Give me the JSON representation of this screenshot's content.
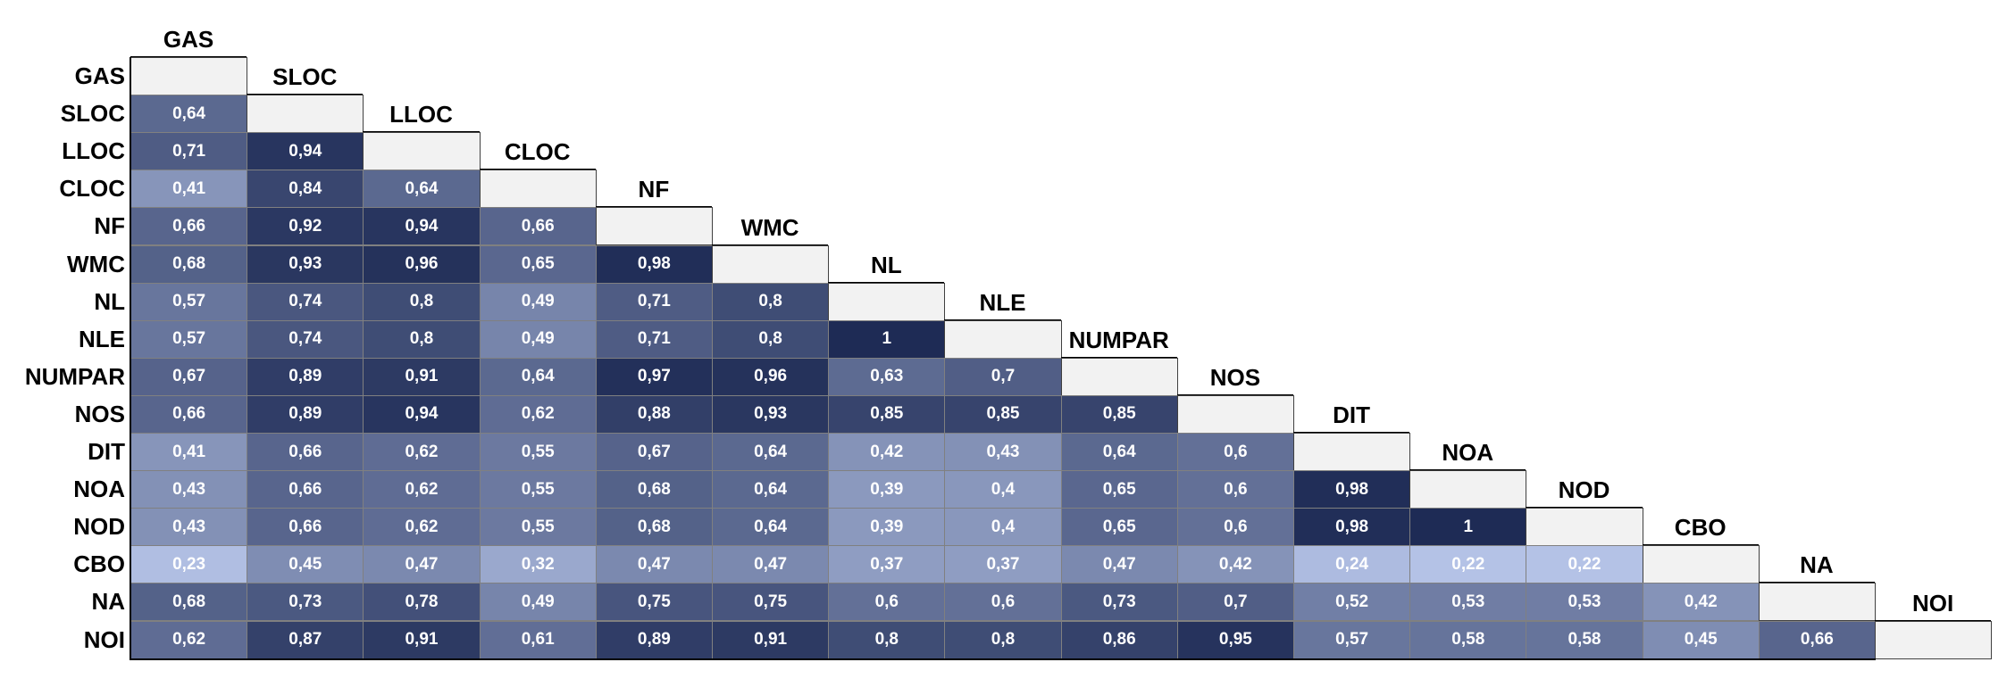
{
  "chart_data": {
    "type": "heatmap",
    "variables": [
      "GAS",
      "SLOC",
      "LLOC",
      "CLOC",
      "NF",
      "WMC",
      "NL",
      "NLE",
      "NUMPAR",
      "NOS",
      "DIT",
      "NOA",
      "NOD",
      "CBO",
      "NA",
      "NOI"
    ],
    "values": [
      [],
      [
        "0,64"
      ],
      [
        "0,71",
        "0,94"
      ],
      [
        "0,41",
        "0,84",
        "0,64"
      ],
      [
        "0,66",
        "0,92",
        "0,94",
        "0,66"
      ],
      [
        "0,68",
        "0,93",
        "0,96",
        "0,65",
        "0,98"
      ],
      [
        "0,57",
        "0,74",
        "0,8",
        "0,49",
        "0,71",
        "0,8"
      ],
      [
        "0,57",
        "0,74",
        "0,8",
        "0,49",
        "0,71",
        "0,8",
        "1"
      ],
      [
        "0,67",
        "0,89",
        "0,91",
        "0,64",
        "0,97",
        "0,96",
        "0,63",
        "0,7"
      ],
      [
        "0,66",
        "0,89",
        "0,94",
        "0,62",
        "0,88",
        "0,93",
        "0,85",
        "0,85",
        "0,85"
      ],
      [
        "0,41",
        "0,66",
        "0,62",
        "0,55",
        "0,67",
        "0,64",
        "0,42",
        "0,43",
        "0,64",
        "0,6"
      ],
      [
        "0,43",
        "0,66",
        "0,62",
        "0,55",
        "0,68",
        "0,64",
        "0,39",
        "0,4",
        "0,65",
        "0,6",
        "0,98"
      ],
      [
        "0,43",
        "0,66",
        "0,62",
        "0,55",
        "0,68",
        "0,64",
        "0,39",
        "0,4",
        "0,65",
        "0,6",
        "0,98",
        "1"
      ],
      [
        "0,23",
        "0,45",
        "0,47",
        "0,32",
        "0,47",
        "0,47",
        "0,37",
        "0,37",
        "0,47",
        "0,42",
        "0,24",
        "0,22",
        "0,22"
      ],
      [
        "0,68",
        "0,73",
        "0,78",
        "0,49",
        "0,75",
        "0,75",
        "0,6",
        "0,6",
        "0,73",
        "0,7",
        "0,52",
        "0,53",
        "0,53",
        "0,42"
      ],
      [
        "0,62",
        "0,87",
        "0,91",
        "0,61",
        "0,89",
        "0,91",
        "0,8",
        "0,8",
        "0,86",
        "0,95",
        "0,57",
        "0,58",
        "0,58",
        "0,45",
        "0,66"
      ]
    ],
    "lower_triangle": true,
    "color_scale": {
      "low": "#b4c2e6",
      "high": "#1e2b55"
    },
    "diagonal_color": "#f2f2f2"
  }
}
